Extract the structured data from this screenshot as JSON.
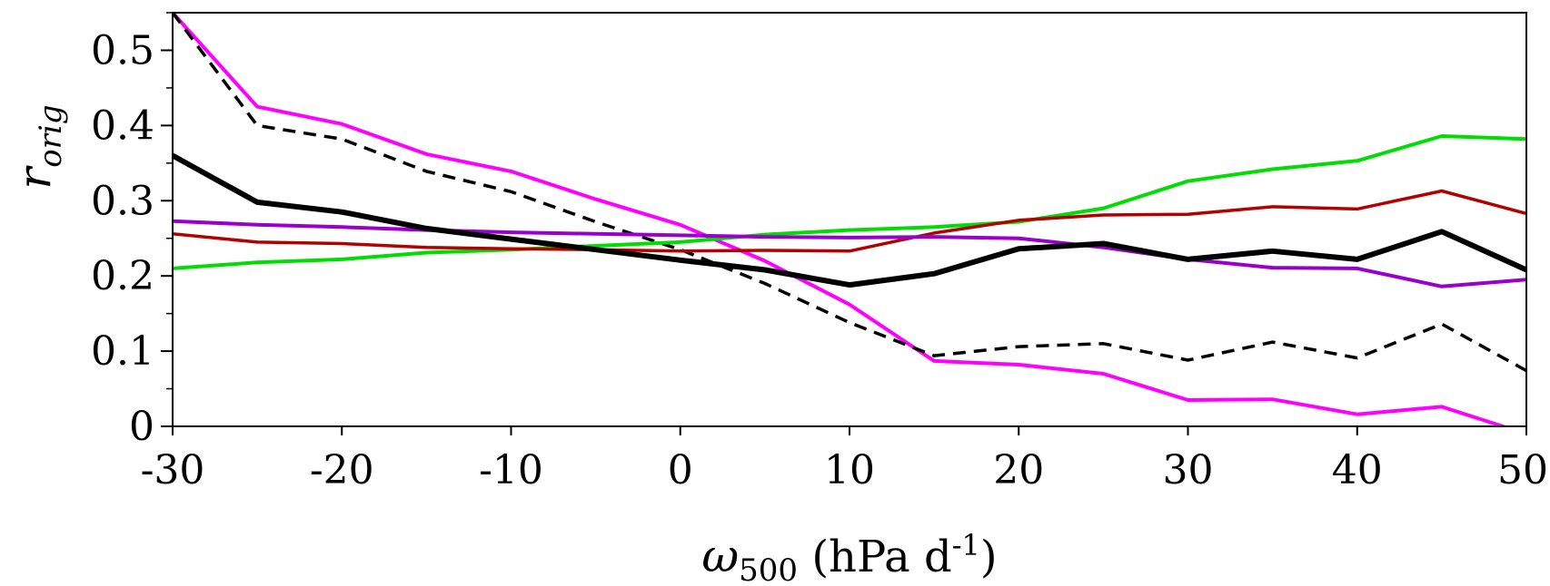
{
  "chart_data": {
    "type": "line",
    "xlabel": {
      "symbol": "ω",
      "subscript": "500",
      "unit_open": " (hPa d",
      "unit_exp": "-1",
      "unit_close": ")"
    },
    "ylabel": {
      "symbol": "r",
      "subscript": "orig"
    },
    "xlim": [
      -30,
      50
    ],
    "ylim": [
      0,
      0.55
    ],
    "xticks": [
      -30,
      -20,
      -10,
      0,
      10,
      20,
      30,
      40,
      50
    ],
    "xtick_labels": [
      "-30",
      "-20",
      "-10",
      "0",
      "10",
      "20",
      "30",
      "40",
      "50"
    ],
    "yticks": [
      0,
      0.1,
      0.2,
      0.3,
      0.4,
      0.5
    ],
    "ytick_labels": [
      "0",
      "0.1",
      "0.2",
      "0.3",
      "0.4",
      "0.5"
    ],
    "grid": false,
    "x": [
      -30,
      -25,
      -20,
      -15,
      -10,
      -5,
      0,
      5,
      10,
      15,
      20,
      25,
      30,
      35,
      40,
      45,
      50
    ],
    "series": [
      {
        "color": "#ff00ff",
        "style": "solid",
        "width": 4,
        "values": [
          0.55,
          0.425,
          0.402,
          0.362,
          0.339,
          0.302,
          0.268,
          0.22,
          0.162,
          0.087,
          0.082,
          0.07,
          0.035,
          0.036,
          0.016,
          0.026,
          -0.01
        ]
      },
      {
        "color": "#000000",
        "style": "dashed",
        "width": 3.5,
        "values": [
          0.55,
          0.4,
          0.382,
          0.339,
          0.312,
          0.272,
          0.235,
          0.19,
          0.138,
          0.094,
          0.106,
          0.11,
          0.088,
          0.112,
          0.091,
          0.136,
          0.074
        ]
      },
      {
        "color": "#00dd00",
        "style": "solid",
        "width": 4,
        "values": [
          0.21,
          0.218,
          0.222,
          0.231,
          0.235,
          0.24,
          0.245,
          0.255,
          0.261,
          0.265,
          0.272,
          0.29,
          0.326,
          0.342,
          0.353,
          0.386,
          0.382
        ]
      },
      {
        "color": "#b30000",
        "style": "solid",
        "width": 3.5,
        "values": [
          0.256,
          0.245,
          0.243,
          0.238,
          0.236,
          0.235,
          0.233,
          0.234,
          0.233,
          0.257,
          0.274,
          0.281,
          0.282,
          0.292,
          0.289,
          0.313,
          0.283
        ]
      },
      {
        "color": "#9900cc",
        "style": "solid",
        "width": 4,
        "values": [
          0.273,
          0.268,
          0.265,
          0.261,
          0.258,
          0.256,
          0.254,
          0.252,
          0.251,
          0.252,
          0.25,
          0.238,
          0.222,
          0.211,
          0.21,
          0.186,
          0.195
        ]
      },
      {
        "color": "#000000",
        "style": "solid",
        "width": 6,
        "values": [
          0.36,
          0.298,
          0.285,
          0.263,
          0.249,
          0.235,
          0.221,
          0.208,
          0.188,
          0.203,
          0.236,
          0.243,
          0.222,
          0.233,
          0.222,
          0.259,
          0.208
        ]
      }
    ]
  }
}
